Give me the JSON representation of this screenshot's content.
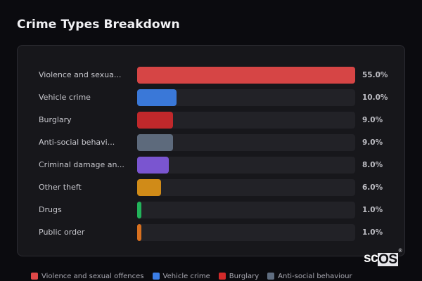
{
  "header": {
    "title": "Crime Types Breakdown"
  },
  "chart_data": {
    "type": "bar",
    "orientation": "horizontal",
    "title": "Crime Types Breakdown",
    "categories": [
      "Violence and sexual offences",
      "Vehicle crime",
      "Burglary",
      "Anti-social behaviour",
      "Criminal damage and arson",
      "Other theft",
      "Drugs",
      "Public order"
    ],
    "display_labels": [
      "Violence and sexua...",
      "Vehicle crime",
      "Burglary",
      "Anti-social behavi...",
      "Criminal damage an...",
      "Other theft",
      "Drugs",
      "Public order"
    ],
    "values": [
      55.0,
      10.0,
      9.0,
      9.0,
      8.0,
      6.0,
      1.0,
      1.0
    ],
    "value_labels": [
      "55.0%",
      "10.0%",
      "9.0%",
      "9.0%",
      "8.0%",
      "6.0%",
      "1.0%",
      "1.0%"
    ],
    "colors": [
      "#d64545",
      "#3a78d8",
      "#c0282b",
      "#5d6a7c",
      "#7a55d0",
      "#d08b18",
      "#22b35a",
      "#d8701f"
    ],
    "xlabel": "",
    "ylabel": "",
    "xlim": [
      0,
      55
    ],
    "unit": "%",
    "grid": false,
    "legend_position": "bottom"
  },
  "legend": {
    "items": [
      {
        "label": "Violence and sexual offences",
        "color": "#e04848"
      },
      {
        "label": "Vehicle crime",
        "color": "#3b7ee6"
      },
      {
        "label": "Burglary",
        "color": "#d32a2a"
      },
      {
        "label": "Anti-social behaviour",
        "color": "#5f6d80"
      }
    ]
  },
  "branding": {
    "logo_sc": "sc",
    "logo_os": "OS",
    "logo_mark": "®"
  }
}
